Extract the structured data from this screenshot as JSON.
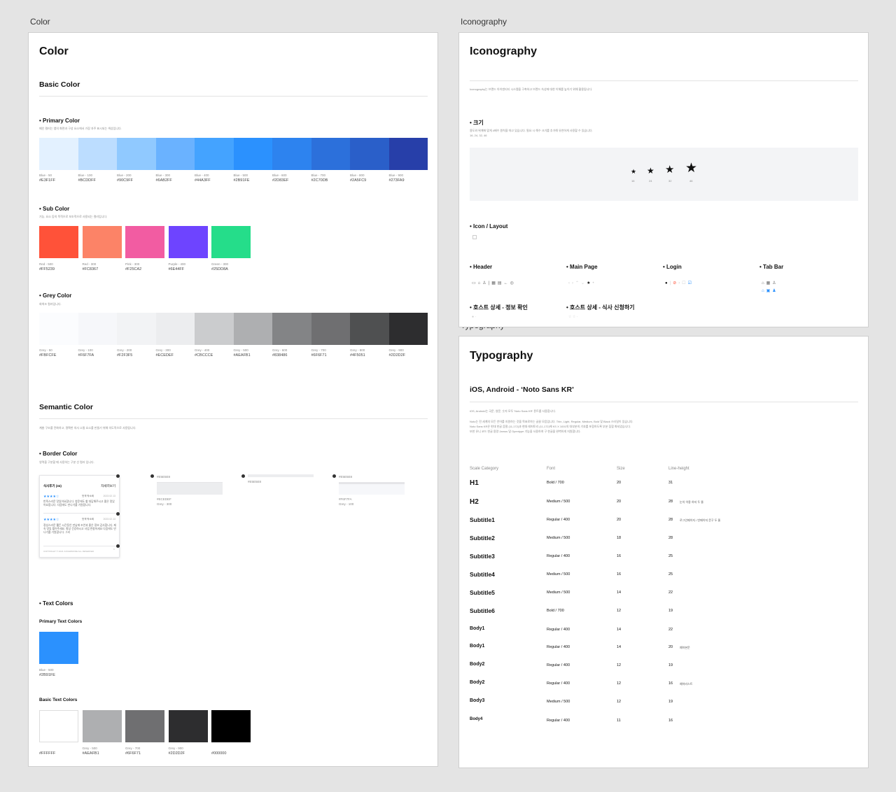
{
  "frames": {
    "color_label": "Color",
    "icon_label": "Iconography",
    "typo_label": "Typography"
  },
  "color": {
    "title": "Color",
    "basic_title": "Basic Color",
    "primary": {
      "title": "Primary Color",
      "desc": "메인 컬러는 앱의 화면과 구성 요소에서 가장 자주 표시되는 색상입니다.",
      "swatches": [
        {
          "name": "Blue - 50",
          "hex": "#E3F1FF"
        },
        {
          "name": "Blue - 100",
          "hex": "#BCDDFF"
        },
        {
          "name": "Blue - 200",
          "hex": "#90C9FF"
        },
        {
          "name": "Blue - 300",
          "hex": "#6AB2FF"
        },
        {
          "name": "Blue - 400",
          "hex": "#44A3FF"
        },
        {
          "name": "Blue - 500",
          "hex": "#2B91FE"
        },
        {
          "name": "Blue - 600",
          "hex": "#2D83EF"
        },
        {
          "name": "Blue - 700",
          "hex": "#2C70DB"
        },
        {
          "name": "Blue - 800",
          "hex": "#2A5FC9"
        },
        {
          "name": "Blue - 900",
          "hex": "#273FA9"
        }
      ]
    },
    "sub": {
      "title": "Sub Color",
      "desc": "기능, 요소 등의 목적으로 보조적으로 사용되는 컬러입니다.",
      "swatches": [
        {
          "name": "Red - 500",
          "hex": "#FF5239"
        },
        {
          "name": "Red - 300",
          "hex": "#FC8367"
        },
        {
          "name": "Pink - 300",
          "hex": "#F25CA2"
        },
        {
          "name": "Purple - 400",
          "hex": "#6E44FF"
        },
        {
          "name": "Green - 300",
          "hex": "#25DD8A"
        }
      ]
    },
    "grey": {
      "title": "Grey Color",
      "desc": "회색조 컬러입니다.",
      "swatches": [
        {
          "name": "Grey - 50",
          "hex": "#FBFCFE"
        },
        {
          "name": "Grey - 100",
          "hex": "#F6F7FA"
        },
        {
          "name": "Grey - 200",
          "hex": "#F2F3F5"
        },
        {
          "name": "Grey - 300",
          "hex": "#ECEDEF"
        },
        {
          "name": "Grey - 400",
          "hex": "#CBCCCE"
        },
        {
          "name": "Grey - 500",
          "hex": "#AEAFB1"
        },
        {
          "name": "Grey - 600",
          "hex": "#838486"
        },
        {
          "name": "Grey - 700",
          "hex": "#6F6F71"
        },
        {
          "name": "Grey - 800",
          "hex": "#4F5051"
        },
        {
          "name": "Grey - 900",
          "hex": "#2D2D2F"
        }
      ]
    },
    "semantic": {
      "title": "Semantic Color",
      "desc": "계층 구조를 전화하고, 명확한 의사 소통 요소를 만들기 위해 의도적으로 사용됩니다.",
      "border_title": "Border Color",
      "border_desc": "영역을 구분할 때 사용하는 구분 선 컬러 입니다.",
      "review_title": "식사후기 (34)",
      "review_more": "자세히보기",
      "review_name": "맛객 박소희",
      "review_date": "2023.02.13",
      "review_text1": "반죽스러운 맛있어요합니다. 청운에도 할 대답해주시고 좋은 맛있어요합니다. 다음에도 만나기를 기원합니다.",
      "review_text2": "정성스러운 웰든 시간동안 만남에 조언과 좋은 정보 감사합니다. 제속 맛있 뵐어주세요, 항상 건강하시고 사업 번창하세요 다음에도 만나기를 기원합니다. 그리",
      "copyright": "COPYRIGHT © 2023 JUICEDMODE ALL RESERVED",
      "b1_hex": "#E5E5E8",
      "b1_hex2": "#ECEDEF",
      "b1_name": "Grey - 300",
      "b2_hex": "#E5E5E8",
      "b3_hex": "#E5E5E8",
      "b3_hex2": "#F6F7FA",
      "b3_name": "Grey - 100",
      "text_title": "Text Colors",
      "primary_text": "Primary Text Colors",
      "primary_sw": {
        "name": "Blue - 500",
        "hex": "#2B91FE"
      },
      "basic_text": "Basic Text Colors",
      "basic_sw": [
        {
          "name": "",
          "hex": "#FFFFFF"
        },
        {
          "name": "Grey - 500",
          "hex": "#AEAFB1"
        },
        {
          "name": "Grey - 700",
          "hex": "#6F6F71"
        },
        {
          "name": "Grey - 900",
          "hex": "#2D2D2F"
        },
        {
          "name": "",
          "hex": "#000000"
        }
      ]
    }
  },
  "icon": {
    "title": "Iconography",
    "desc": "Iconography는 브랜드 아이덴티티 시스템을 구축하고 브랜드 속성에 대한 이해를 높이기 위해 활용됩니다.",
    "size_title": "크기",
    "size_desc": "용도와 위계에 맞게 4배수 원칙을 따고 있습니다. 필요 시 해수 크기를 추가해 유연하게 사용할 수 있습니다.",
    "size_list": "16, 24, 32, 46",
    "sizes": [
      "16",
      "24",
      "32",
      "46"
    ],
    "layout_title": "Icon / Layout",
    "header": "Header",
    "main_page": "Main Page",
    "login": "Login",
    "tab_bar": "Tab Bar",
    "host_info": "호스트 상세 - 정보 확인",
    "host_meal": "호스트 상세 - 식사 신청하기"
  },
  "typo": {
    "title": "Typography",
    "font_title": "iOS, Android - ‘Noto Sans KR’",
    "desc1": "iOS, Android는 국문, 영문, 숫자 모두 'Noto Sans KR' 폰트를 사용합니다.",
    "desc2": "Noto는 전 세계의 모든 언어를 지원하는 것을 목표로하는 글꼴 모음입니다. Thin, Light, Regular, Medium, Bold 및 Black 스타일이 있습니다.",
    "desc3": "Noto Sans KR은 현대 한글 음절 (11,172)과 현대 레퍼토리 (11,172)에 KS X 1001의 대부분의 기호를 포함하도록 부분 집합 화되었습니다.",
    "desc4": "또한 유니 코드 한글 용량 Jamos 및 Opentype 기능을 사용하여 구 한글을 완벽하게 지원합니다.",
    "headers": [
      "Scale Category",
      "Font",
      "Size",
      "Line-height"
    ],
    "rows": [
      {
        "name": "H1",
        "font": "Bold / 700",
        "size": "20",
        "lh": "31",
        "note": ""
      },
      {
        "name": "H2",
        "font": "Medium / 500",
        "size": "20",
        "lh": "28",
        "note": "눈치 이용 하지 두 줄"
      },
      {
        "name": "Subtitle1",
        "font": "Regular / 400",
        "size": "20",
        "lh": "28",
        "note": "로그인페이지 / 빈페이지 문구 두 줄"
      },
      {
        "name": "Subtitle2",
        "font": "Medium / 500",
        "size": "18",
        "lh": "28",
        "note": ""
      },
      {
        "name": "Subtitle3",
        "font": "Regular / 400",
        "size": "16",
        "lh": "25",
        "note": ""
      },
      {
        "name": "Subtitle4",
        "font": "Medium / 500",
        "size": "16",
        "lh": "25",
        "note": ""
      },
      {
        "name": "Subtitle5",
        "font": "Medium / 500",
        "size": "14",
        "lh": "22",
        "note": ""
      },
      {
        "name": "Subtitle6",
        "font": "Bold / 700",
        "size": "12",
        "lh": "19",
        "note": ""
      },
      {
        "name": "Body1",
        "font": "Regular / 400",
        "size": "14",
        "lh": "22",
        "note": ""
      },
      {
        "name": "Body1",
        "font": "Regular / 400",
        "size": "14",
        "lh": "20",
        "note": "예약본문"
      },
      {
        "name": "Body2",
        "font": "Regular / 400",
        "size": "12",
        "lh": "19",
        "note": ""
      },
      {
        "name": "Body2",
        "font": "Regular / 400",
        "size": "12",
        "lh": "16",
        "note": "예약리스트"
      },
      {
        "name": "Body3",
        "font": "Medium / 500",
        "size": "12",
        "lh": "19",
        "note": ""
      },
      {
        "name": "Body4",
        "font": "Regular / 400",
        "size": "11",
        "lh": "16",
        "note": ""
      }
    ]
  }
}
